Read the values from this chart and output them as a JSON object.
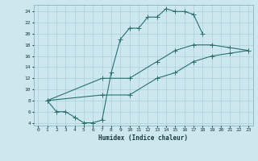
{
  "xlabel": "Humidex (Indice chaleur)",
  "ylabel": "",
  "xlim": [
    -0.5,
    23.5
  ],
  "ylim": [
    3.5,
    25.2
  ],
  "xticks": [
    0,
    1,
    2,
    3,
    4,
    5,
    6,
    7,
    8,
    9,
    10,
    11,
    12,
    13,
    14,
    15,
    16,
    17,
    18,
    19,
    20,
    21,
    22,
    23
  ],
  "yticks": [
    4,
    6,
    8,
    10,
    12,
    14,
    16,
    18,
    20,
    22,
    24
  ],
  "bg_color": "#cce8ee",
  "line_color": "#2a7070",
  "grid_color": "#aad0d8",
  "line1_x": [
    1,
    2,
    3,
    4,
    5,
    6,
    7,
    8,
    9,
    10,
    11,
    12,
    13,
    14,
    15,
    16,
    17,
    18
  ],
  "line1_y": [
    8,
    6,
    6,
    5,
    4,
    4,
    4.5,
    13,
    19,
    21,
    21,
    23,
    23,
    24.5,
    24,
    24,
    23.5,
    20
  ],
  "line2_x": [
    1,
    7,
    10,
    13,
    15,
    17,
    19,
    21,
    23
  ],
  "line2_y": [
    8,
    12,
    12,
    15,
    17,
    18,
    18,
    17.5,
    17
  ],
  "line3_x": [
    1,
    7,
    10,
    13,
    15,
    17,
    19,
    21,
    23
  ],
  "line3_y": [
    8,
    9,
    9,
    12,
    13,
    15,
    16,
    16.5,
    17
  ]
}
